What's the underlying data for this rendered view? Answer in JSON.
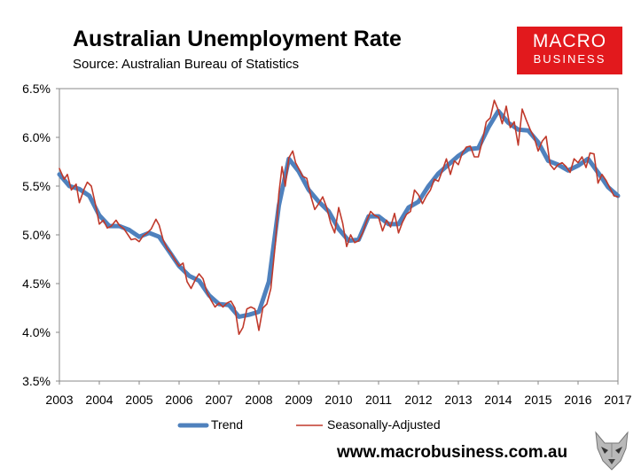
{
  "header": {
    "title": "Australian Unemployment Rate",
    "subtitle": "Source: Australian Bureau of Statistics",
    "logo_line1": "MACRO",
    "logo_line2": "BUSINESS"
  },
  "footer": {
    "url": "www.macrobusiness.com.au",
    "wolf_icon": "wolf-icon"
  },
  "colors": {
    "trend": "#4f81bd",
    "seasonally_adjusted": "#c0392b",
    "logo_bg": "#e2191d"
  },
  "chart_data": {
    "type": "line",
    "title": "Australian Unemployment Rate",
    "xlabel": "",
    "ylabel": "",
    "xlim": [
      2003,
      2017
    ],
    "ylim": [
      3.5,
      6.5
    ],
    "x_ticks": [
      "2003",
      "2004",
      "2005",
      "2006",
      "2007",
      "2008",
      "2009",
      "2010",
      "2011",
      "2012",
      "2013",
      "2014",
      "2015",
      "2016",
      "2017"
    ],
    "y_ticks": [
      "3.5%",
      "4.0%",
      "4.5%",
      "5.0%",
      "5.5%",
      "6.0%",
      "6.5%"
    ],
    "grid": false,
    "legend_position": "bottom",
    "series": [
      {
        "name": "Trend",
        "color": "#4f81bd",
        "points": [
          [
            2003.0,
            5.62
          ],
          [
            2003.25,
            5.5
          ],
          [
            2003.5,
            5.47
          ],
          [
            2003.75,
            5.4
          ],
          [
            2004.0,
            5.2
          ],
          [
            2004.25,
            5.09
          ],
          [
            2004.5,
            5.09
          ],
          [
            2004.75,
            5.05
          ],
          [
            2005.0,
            4.98
          ],
          [
            2005.25,
            5.02
          ],
          [
            2005.5,
            4.98
          ],
          [
            2005.75,
            4.83
          ],
          [
            2006.0,
            4.68
          ],
          [
            2006.25,
            4.58
          ],
          [
            2006.5,
            4.53
          ],
          [
            2006.75,
            4.38
          ],
          [
            2007.0,
            4.29
          ],
          [
            2007.25,
            4.28
          ],
          [
            2007.5,
            4.16
          ],
          [
            2007.75,
            4.18
          ],
          [
            2008.0,
            4.21
          ],
          [
            2008.25,
            4.52
          ],
          [
            2008.5,
            5.3
          ],
          [
            2008.75,
            5.78
          ],
          [
            2009.0,
            5.65
          ],
          [
            2009.25,
            5.46
          ],
          [
            2009.5,
            5.34
          ],
          [
            2009.75,
            5.24
          ],
          [
            2010.0,
            5.06
          ],
          [
            2010.25,
            4.94
          ],
          [
            2010.5,
            4.95
          ],
          [
            2010.75,
            5.19
          ],
          [
            2011.0,
            5.19
          ],
          [
            2011.25,
            5.11
          ],
          [
            2011.5,
            5.11
          ],
          [
            2011.75,
            5.28
          ],
          [
            2012.0,
            5.34
          ],
          [
            2012.25,
            5.5
          ],
          [
            2012.5,
            5.63
          ],
          [
            2012.75,
            5.72
          ],
          [
            2013.0,
            5.81
          ],
          [
            2013.25,
            5.88
          ],
          [
            2013.5,
            5.89
          ],
          [
            2013.75,
            6.1
          ],
          [
            2014.0,
            6.27
          ],
          [
            2014.25,
            6.15
          ],
          [
            2014.5,
            6.08
          ],
          [
            2014.75,
            6.07
          ],
          [
            2015.0,
            5.95
          ],
          [
            2015.25,
            5.76
          ],
          [
            2015.5,
            5.72
          ],
          [
            2015.75,
            5.66
          ],
          [
            2016.0,
            5.71
          ],
          [
            2016.25,
            5.78
          ],
          [
            2016.5,
            5.64
          ],
          [
            2016.75,
            5.49
          ],
          [
            2017.0,
            5.4
          ]
        ]
      },
      {
        "name": "Seasonally-Adjusted",
        "color": "#c0392b",
        "points": [
          [
            2003.0,
            5.68
          ],
          [
            2003.12,
            5.57
          ],
          [
            2003.2,
            5.62
          ],
          [
            2003.3,
            5.46
          ],
          [
            2003.42,
            5.52
          ],
          [
            2003.5,
            5.33
          ],
          [
            2003.62,
            5.47
          ],
          [
            2003.7,
            5.54
          ],
          [
            2003.8,
            5.5
          ],
          [
            2003.9,
            5.32
          ],
          [
            2004.0,
            5.11
          ],
          [
            2004.1,
            5.15
          ],
          [
            2004.2,
            5.07
          ],
          [
            2004.3,
            5.09
          ],
          [
            2004.42,
            5.15
          ],
          [
            2004.5,
            5.1
          ],
          [
            2004.62,
            5.06
          ],
          [
            2004.72,
            5.0
          ],
          [
            2004.8,
            4.95
          ],
          [
            2004.9,
            4.96
          ],
          [
            2005.0,
            4.93
          ],
          [
            2005.1,
            4.99
          ],
          [
            2005.2,
            5.02
          ],
          [
            2005.3,
            5.06
          ],
          [
            2005.42,
            5.16
          ],
          [
            2005.5,
            5.1
          ],
          [
            2005.6,
            4.95
          ],
          [
            2005.7,
            4.86
          ],
          [
            2005.8,
            4.81
          ],
          [
            2005.9,
            4.74
          ],
          [
            2006.0,
            4.68
          ],
          [
            2006.1,
            4.71
          ],
          [
            2006.2,
            4.52
          ],
          [
            2006.3,
            4.45
          ],
          [
            2006.42,
            4.55
          ],
          [
            2006.5,
            4.6
          ],
          [
            2006.6,
            4.55
          ],
          [
            2006.7,
            4.41
          ],
          [
            2006.8,
            4.33
          ],
          [
            2006.9,
            4.26
          ],
          [
            2007.0,
            4.3
          ],
          [
            2007.1,
            4.26
          ],
          [
            2007.2,
            4.3
          ],
          [
            2007.3,
            4.32
          ],
          [
            2007.4,
            4.25
          ],
          [
            2007.5,
            3.98
          ],
          [
            2007.6,
            4.05
          ],
          [
            2007.7,
            4.24
          ],
          [
            2007.8,
            4.26
          ],
          [
            2007.9,
            4.24
          ],
          [
            2008.0,
            4.02
          ],
          [
            2008.1,
            4.25
          ],
          [
            2008.2,
            4.29
          ],
          [
            2008.3,
            4.45
          ],
          [
            2008.42,
            4.94
          ],
          [
            2008.5,
            5.42
          ],
          [
            2008.58,
            5.7
          ],
          [
            2008.66,
            5.5
          ],
          [
            2008.75,
            5.79
          ],
          [
            2008.85,
            5.86
          ],
          [
            2008.92,
            5.74
          ],
          [
            2009.0,
            5.68
          ],
          [
            2009.1,
            5.6
          ],
          [
            2009.2,
            5.58
          ],
          [
            2009.3,
            5.4
          ],
          [
            2009.4,
            5.26
          ],
          [
            2009.5,
            5.32
          ],
          [
            2009.6,
            5.39
          ],
          [
            2009.7,
            5.28
          ],
          [
            2009.8,
            5.12
          ],
          [
            2009.9,
            5.02
          ],
          [
            2010.0,
            5.28
          ],
          [
            2010.1,
            5.12
          ],
          [
            2010.2,
            4.88
          ],
          [
            2010.3,
            5.0
          ],
          [
            2010.4,
            4.92
          ],
          [
            2010.5,
            4.94
          ],
          [
            2010.6,
            5.02
          ],
          [
            2010.7,
            5.14
          ],
          [
            2010.8,
            5.24
          ],
          [
            2010.9,
            5.2
          ],
          [
            2011.0,
            5.18
          ],
          [
            2011.1,
            5.04
          ],
          [
            2011.2,
            5.15
          ],
          [
            2011.3,
            5.08
          ],
          [
            2011.4,
            5.22
          ],
          [
            2011.5,
            5.02
          ],
          [
            2011.6,
            5.13
          ],
          [
            2011.7,
            5.21
          ],
          [
            2011.8,
            5.24
          ],
          [
            2011.9,
            5.46
          ],
          [
            2012.0,
            5.41
          ],
          [
            2012.1,
            5.32
          ],
          [
            2012.2,
            5.4
          ],
          [
            2012.3,
            5.46
          ],
          [
            2012.4,
            5.57
          ],
          [
            2012.5,
            5.55
          ],
          [
            2012.6,
            5.66
          ],
          [
            2012.7,
            5.78
          ],
          [
            2012.8,
            5.62
          ],
          [
            2012.9,
            5.76
          ],
          [
            2013.0,
            5.72
          ],
          [
            2013.1,
            5.84
          ],
          [
            2013.2,
            5.9
          ],
          [
            2013.3,
            5.91
          ],
          [
            2013.4,
            5.8
          ],
          [
            2013.5,
            5.8
          ],
          [
            2013.6,
            5.96
          ],
          [
            2013.7,
            6.16
          ],
          [
            2013.8,
            6.2
          ],
          [
            2013.9,
            6.38
          ],
          [
            2014.0,
            6.28
          ],
          [
            2014.1,
            6.14
          ],
          [
            2014.2,
            6.32
          ],
          [
            2014.3,
            6.1
          ],
          [
            2014.4,
            6.16
          ],
          [
            2014.5,
            5.92
          ],
          [
            2014.6,
            6.29
          ],
          [
            2014.7,
            6.18
          ],
          [
            2014.8,
            6.08
          ],
          [
            2014.9,
            6.0
          ],
          [
            2015.0,
            5.86
          ],
          [
            2015.1,
            5.96
          ],
          [
            2015.2,
            6.01
          ],
          [
            2015.3,
            5.72
          ],
          [
            2015.4,
            5.67
          ],
          [
            2015.5,
            5.72
          ],
          [
            2015.6,
            5.74
          ],
          [
            2015.7,
            5.7
          ],
          [
            2015.8,
            5.64
          ],
          [
            2015.9,
            5.78
          ],
          [
            2016.0,
            5.74
          ],
          [
            2016.1,
            5.8
          ],
          [
            2016.2,
            5.69
          ],
          [
            2016.3,
            5.84
          ],
          [
            2016.4,
            5.83
          ],
          [
            2016.5,
            5.53
          ],
          [
            2016.6,
            5.62
          ],
          [
            2016.7,
            5.56
          ],
          [
            2016.8,
            5.48
          ],
          [
            2016.9,
            5.4
          ],
          [
            2017.0,
            5.39
          ]
        ]
      }
    ]
  }
}
